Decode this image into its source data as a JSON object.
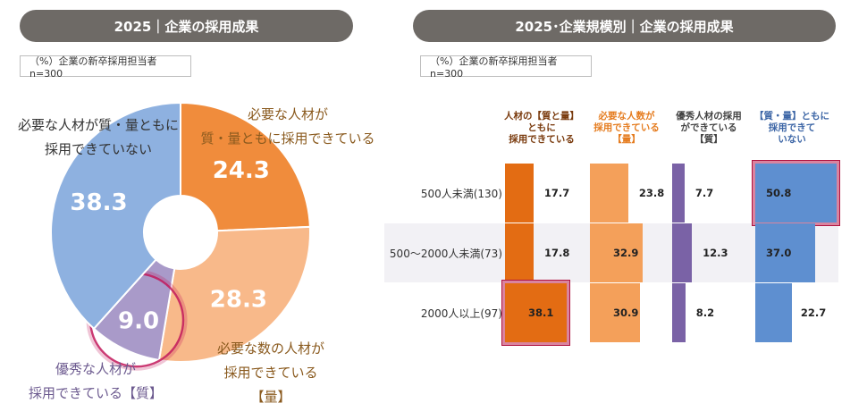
{
  "left": {
    "title": "2025｜企業の採用成果",
    "note": "（%）企業の新卒採用担当者 n=300",
    "chart_data": {
      "type": "pie",
      "style": "donut",
      "title": "2025｜企業の採用成果",
      "unit": "%",
      "slices": [
        {
          "name": "必要な人材が質・量ともに採用できている",
          "value": 24.3,
          "color": "#f08c3c"
        },
        {
          "name": "必要な数の人材が採用できている【量】",
          "value": 28.3,
          "color": "#f8b98a"
        },
        {
          "name": "優秀な人材が採用できている【質】",
          "value": 9.0,
          "color": "#a99ac9"
        },
        {
          "name": "必要な人材が質・量ともに採用できていない",
          "value": 38.3,
          "color": "#8eb1e0"
        }
      ],
      "highlight": "優秀な人材が採用できている【質】"
    },
    "labels": {
      "both": [
        "必要な人材が",
        "質・量ともに採用できている"
      ],
      "quantity": [
        "必要な数の人材が",
        "採用できている",
        "【量】"
      ],
      "quality": [
        "優秀な人材が",
        "採用できている【質】"
      ],
      "none": [
        "必要な人材が質・量ともに",
        "採用できていない"
      ]
    }
  },
  "right": {
    "title": "2025･企業規模別｜企業の採用成果",
    "note": "（%）企業の新卒採用担当者 n=300",
    "chart_data": {
      "type": "bar",
      "orientation": "horizontal",
      "title": "2025･企業規模別｜企業の採用成果",
      "unit": "%",
      "categories": [
        "500人未満(130)",
        "500～2000人未満(73)",
        "2000人以上(97)"
      ],
      "series": [
        {
          "name": "人材の【質と量】ともに採用できている",
          "header": [
            "人材の【質と量】",
            "ともに",
            "採用できている"
          ],
          "color": "#e36c13",
          "header_color": "#7a3b0e",
          "values": [
            17.7,
            17.8,
            38.1
          ]
        },
        {
          "name": "必要な人数が採用できている【量】",
          "header": [
            "必要な人数が",
            "採用できている",
            "【量】"
          ],
          "color": "#f4a05a",
          "header_color": "#e57c1f",
          "values": [
            23.8,
            32.9,
            30.9
          ]
        },
        {
          "name": "優秀人材の採用ができている【質】",
          "header": [
            "優秀人材の採用",
            "ができている",
            "【質】"
          ],
          "color": "#7a62a6",
          "header_color": "#444444",
          "values": [
            7.7,
            12.3,
            8.2
          ]
        },
        {
          "name": "【質・量】ともに採用できていない",
          "header": [
            "【質・量】ともに",
            "採用できて",
            "いない"
          ],
          "color": "#5e8fd0",
          "header_color": "#3d66a6",
          "values": [
            50.8,
            37.0,
            22.7
          ]
        }
      ],
      "highlights": [
        "2000人以上(97) / 人材の【質と量】ともに採用できている",
        "500人未満(130) / 【質・量】ともに採用できていない"
      ]
    }
  }
}
